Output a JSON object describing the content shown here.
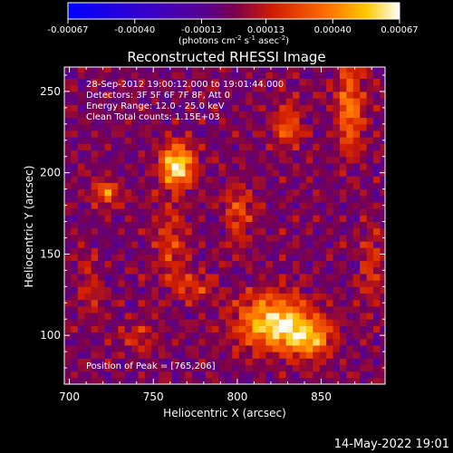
{
  "chart_data": {
    "type": "heatmap",
    "title": "Reconstructed RHESSI Image",
    "xlabel": "Heliocentric X (arcsec)",
    "ylabel": "Heliocentric Y (arcsec)",
    "xlim": [
      697,
      888
    ],
    "ylim": [
      70,
      265
    ],
    "x_ticks": [
      700,
      750,
      800,
      850
    ],
    "y_ticks": [
      100,
      150,
      200,
      250
    ],
    "grid": false,
    "colorbar": {
      "position": "top",
      "min": -0.00067,
      "max": 0.00067,
      "ticks": [
        "-0.00067",
        "-0.00040",
        "-0.00013",
        "0.00013",
        "0.00040",
        "0.00067"
      ],
      "tick_values": [
        -0.00067,
        -0.0004,
        -0.00013,
        0.00013,
        0.0004,
        0.00067
      ],
      "units_prefix": "(photons cm",
      "units_exp1": "-2",
      "units_mid": " s",
      "units_exp2": "-1",
      "units_mid2": " asec",
      "units_exp3": "-2",
      "units_suffix": ")"
    },
    "info_lines": [
      "28-Sep-2012 19:00:12.000 to 19:01:44.000",
      "Detectors: 3F 5F 6F 7F 8F, Att 0",
      "Energy Range: 12.0 - 25.0 keV",
      "Clean     Total counts: 1.15E+03"
    ],
    "peak_text": "Position of Peak = [765,206]",
    "sources": [
      {
        "x": 764,
        "y": 204,
        "sx": 7,
        "sy": 9,
        "amp": 0.00068
      },
      {
        "x": 722,
        "y": 188,
        "sx": 5,
        "sy": 5,
        "amp": 0.00038
      },
      {
        "x": 822,
        "y": 108,
        "sx": 16,
        "sy": 12,
        "amp": 0.0006
      },
      {
        "x": 842,
        "y": 98,
        "sx": 10,
        "sy": 8,
        "amp": 0.00042
      },
      {
        "x": 867,
        "y": 240,
        "sx": 6,
        "sy": 20,
        "amp": 0.00038
      },
      {
        "x": 830,
        "y": 230,
        "sx": 6,
        "sy": 10,
        "amp": 0.00032
      },
      {
        "x": 800,
        "y": 175,
        "sx": 6,
        "sy": 12,
        "amp": 0.00028
      },
      {
        "x": 760,
        "y": 155,
        "sx": 6,
        "sy": 18,
        "amp": 0.00025
      },
      {
        "x": 775,
        "y": 130,
        "sx": 8,
        "sy": 6,
        "amp": 0.00022
      },
      {
        "x": 712,
        "y": 130,
        "sx": 5,
        "sy": 12,
        "amp": 0.0002
      },
      {
        "x": 740,
        "y": 100,
        "sx": 7,
        "sy": 6,
        "amp": 0.0002
      },
      {
        "x": 880,
        "y": 140,
        "sx": 5,
        "sy": 18,
        "amp": 0.0002
      }
    ]
  },
  "footer": {
    "timestamp": "14-May-2022 19:01"
  }
}
